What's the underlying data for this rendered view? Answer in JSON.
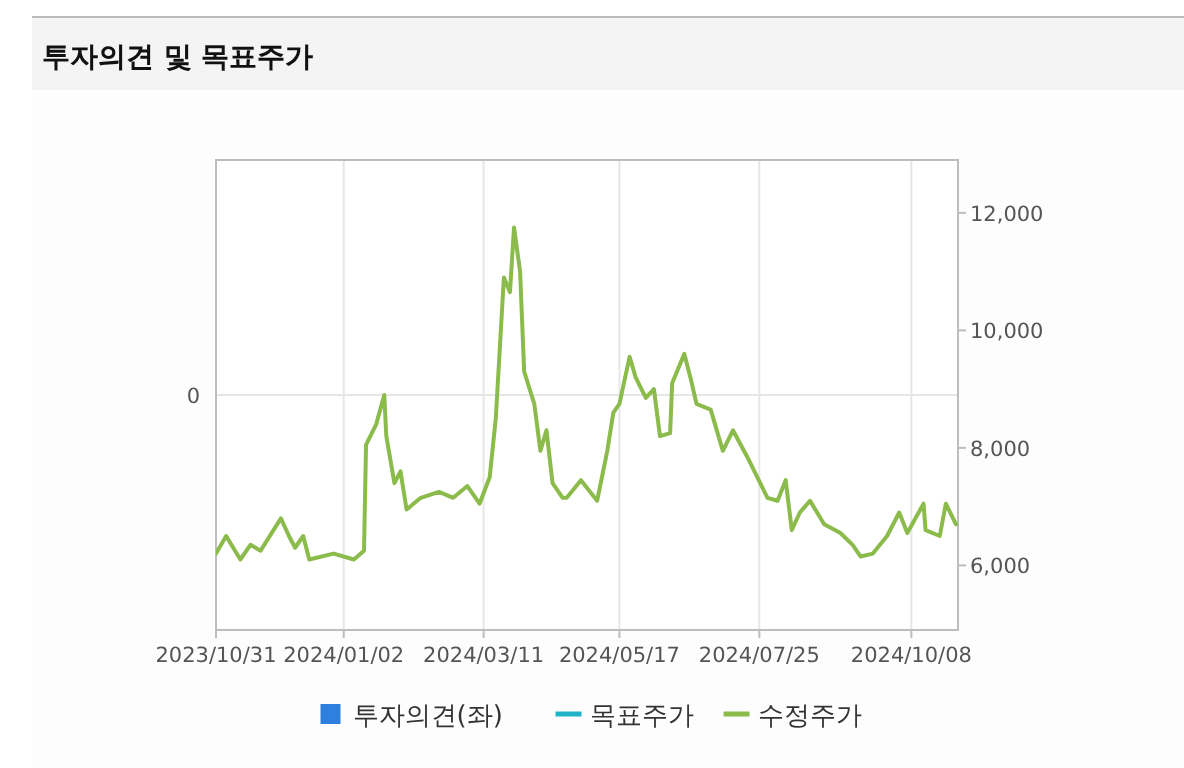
{
  "chart_data": {
    "type": "line",
    "title": "투자의견 및 목표주가",
    "xlim": [
      "2023-10-31",
      "2024-10-31"
    ],
    "xticks": [
      {
        "value": "2023-10-31",
        "label": "2023/10/31"
      },
      {
        "value": "2024-01-02",
        "label": "2024/01/02"
      },
      {
        "value": "2024-03-11",
        "label": "2024/03/11"
      },
      {
        "value": "2024-05-17",
        "label": "2024/05/17"
      },
      {
        "value": "2024-07-25",
        "label": "2024/07/25"
      },
      {
        "value": "2024-10-08",
        "label": "2024/10/08"
      }
    ],
    "annotations": [
      "0"
    ],
    "y2lim": [
      4900,
      12900
    ],
    "y2ticks": [
      {
        "value": 6000,
        "label": "6,000"
      },
      {
        "value": 8000,
        "label": "8,000"
      },
      {
        "value": 10000,
        "label": "10,000"
      },
      {
        "value": 12000,
        "label": "12,000"
      }
    ],
    "grid": true,
    "legend": "bottom",
    "series": [
      {
        "name": "투자의견(좌)",
        "type": "bar",
        "color": "#2f7fde"
      },
      {
        "name": "목표주가",
        "type": "line",
        "color": "#20b2c8",
        "axis": "y2"
      },
      {
        "name": "수정주가",
        "color": "#8bbb4a",
        "axis": "y2",
        "x": [
          "2023-10-31",
          "2023-11-05",
          "2023-11-12",
          "2023-11-17",
          "2023-11-22",
          "2023-12-02",
          "2023-12-06",
          "2023-12-09",
          "2023-12-13",
          "2023-12-16",
          "2023-12-28",
          "2024-01-07",
          "2024-01-12",
          "2024-01-13",
          "2024-01-18",
          "2024-01-22",
          "2024-01-23",
          "2024-01-27",
          "2024-01-30",
          "2024-02-02",
          "2024-02-09",
          "2024-02-18",
          "2024-02-25",
          "2024-03-03",
          "2024-03-09",
          "2024-03-14",
          "2024-03-17",
          "2024-03-21",
          "2024-03-24",
          "2024-03-26",
          "2024-03-29",
          "2024-03-31",
          "2024-04-05",
          "2024-04-08",
          "2024-04-11",
          "2024-04-14",
          "2024-04-19",
          "2024-04-21",
          "2024-04-28",
          "2024-05-06",
          "2024-05-11",
          "2024-05-14",
          "2024-05-17",
          "2024-05-22",
          "2024-05-25",
          "2024-05-30",
          "2024-06-03",
          "2024-06-06",
          "2024-06-11",
          "2024-06-12",
          "2024-06-18",
          "2024-06-21",
          "2024-06-24",
          "2024-07-01",
          "2024-07-07",
          "2024-07-12",
          "2024-07-19",
          "2024-07-29",
          "2024-08-03",
          "2024-08-07",
          "2024-08-10",
          "2024-08-14",
          "2024-08-19",
          "2024-08-26",
          "2024-09-03",
          "2024-09-09",
          "2024-09-13",
          "2024-09-19",
          "2024-09-26",
          "2024-10-02",
          "2024-10-06",
          "2024-10-14",
          "2024-10-15",
          "2024-10-22",
          "2024-10-25",
          "2024-10-30"
        ],
        "values": [
          6200,
          6500,
          6100,
          6350,
          6250,
          6800,
          6500,
          6300,
          6500,
          6100,
          6200,
          6100,
          6250,
          8050,
          8400,
          8900,
          8200,
          7400,
          7600,
          6950,
          7150,
          7250,
          7150,
          7350,
          7050,
          7500,
          8500,
          10900,
          10650,
          11750,
          11000,
          9300,
          8750,
          7950,
          8300,
          7400,
          7150,
          7150,
          7450,
          7100,
          7950,
          8600,
          8750,
          9550,
          9200,
          8850,
          9000,
          8200,
          8250,
          9100,
          9600,
          9200,
          8750,
          8650,
          7950,
          8300,
          7850,
          7150,
          7100,
          7450,
          6600,
          6900,
          7100,
          6700,
          6550,
          6350,
          6150,
          6200,
          6500,
          6900,
          6550,
          7050,
          6600,
          6500,
          7050,
          6700
        ]
      }
    ]
  }
}
